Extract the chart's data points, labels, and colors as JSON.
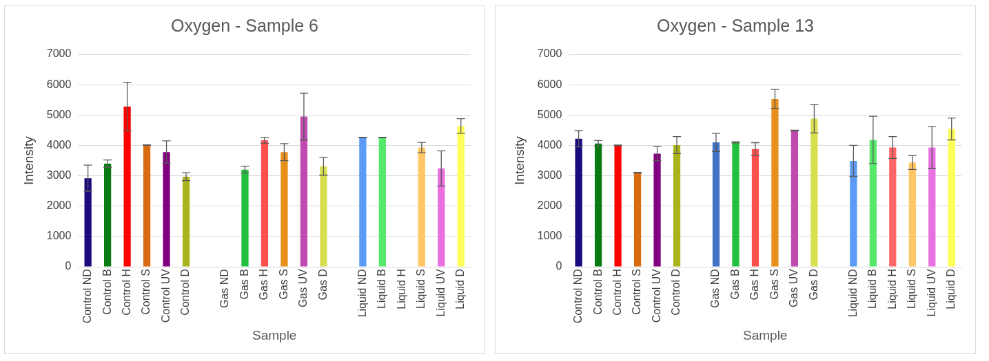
{
  "chart_data": [
    {
      "type": "bar",
      "title": "Oxygen - Sample 6",
      "xlabel": "Sample",
      "ylabel": "Intensity",
      "categories": [
        "Control ND",
        "Control B",
        "Control H",
        "Control S",
        "Control UV",
        "Control D",
        null,
        "Gas ND",
        "Gas B",
        "Gas H",
        "Gas S",
        "Gas UV",
        "Gas D",
        null,
        "Liquid ND",
        "Liquid B",
        "Liquid H",
        "Liquid S",
        "Liquid UV",
        "Liquid D"
      ],
      "values": [
        2920,
        3400,
        5280,
        4010,
        3780,
        2970,
        null,
        null,
        3200,
        4170,
        3780,
        4950,
        3310,
        null,
        4260,
        4260,
        null,
        3930,
        3240,
        4640
      ],
      "errors": [
        430,
        120,
        800,
        10,
        370,
        130,
        null,
        null,
        110,
        100,
        280,
        770,
        290,
        null,
        10,
        10,
        null,
        170,
        580,
        240
      ],
      "colors": [
        "#1a0a80",
        "#0a7a12",
        "#ff0000",
        "#d86a10",
        "#800080",
        "#aab41a",
        "#ffffff",
        "#4472c4",
        "#22c040",
        "#ff5050",
        "#e8901c",
        "#c04ab0",
        "#d8e050",
        "#ffffff",
        "#5b9bf5",
        "#55e86a",
        "#ff6666",
        "#ffc766",
        "#e870e0",
        "#ffff5a"
      ],
      "ylim": [
        0,
        7000
      ],
      "yticks": [
        0,
        1000,
        2000,
        3000,
        4000,
        5000,
        6000,
        7000
      ],
      "grid": "y",
      "legend": false
    },
    {
      "type": "bar",
      "title": "Oxygen - Sample 13",
      "xlabel": "Sample",
      "ylabel": "Intensity",
      "categories": [
        "Control ND",
        "Control B",
        "Control H",
        "Control S",
        "Control UV",
        "Control D",
        null,
        "Gas ND",
        "Gas B",
        "Gas H",
        "Gas S",
        "Gas UV",
        "Gas D",
        null,
        "Liquid ND",
        "Liquid B",
        "Liquid H",
        "Liquid S",
        "Liquid UV",
        "Liquid D"
      ],
      "values": [
        4220,
        4060,
        4000,
        3100,
        3730,
        4010,
        null,
        4100,
        4100,
        3880,
        5530,
        4490,
        4880,
        null,
        3490,
        4180,
        3930,
        3440,
        3930,
        4540
      ],
      "errors": [
        270,
        100,
        10,
        10,
        230,
        280,
        null,
        300,
        20,
        210,
        310,
        10,
        470,
        null,
        510,
        780,
        360,
        230,
        690,
        360
      ],
      "colors": [
        "#1a0a80",
        "#0a7a12",
        "#ff0000",
        "#d86a10",
        "#800080",
        "#aab41a",
        "#ffffff",
        "#4472c4",
        "#22c040",
        "#ff5050",
        "#e8901c",
        "#c04ab0",
        "#d8e050",
        "#ffffff",
        "#5b9bf5",
        "#55e86a",
        "#ff6666",
        "#ffc766",
        "#e870e0",
        "#ffff5a"
      ],
      "ylim": [
        0,
        7000
      ],
      "yticks": [
        0,
        1000,
        2000,
        3000,
        4000,
        5000,
        6000,
        7000
      ],
      "grid": "y",
      "legend": false
    }
  ]
}
